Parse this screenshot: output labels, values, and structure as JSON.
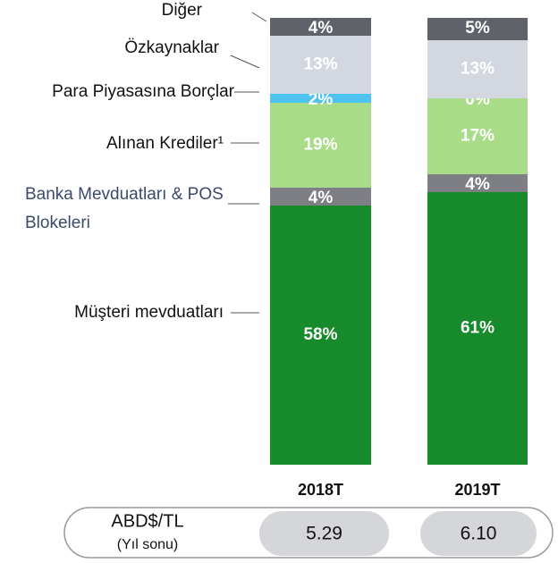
{
  "chart_data": {
    "type": "stacked_bar",
    "categories": [
      "2018T",
      "2019T"
    ],
    "ylim": [
      0,
      100
    ],
    "series": [
      {
        "name": "Müşteri mevduatları",
        "color": "#178a2c",
        "values": [
          58,
          61
        ],
        "value_labels": [
          "58%",
          "61%"
        ]
      },
      {
        "name": "Banka Mevduatları & POS Blokeleri",
        "color": "#7d7f84",
        "values": [
          4,
          4
        ],
        "value_labels": [
          "4%",
          "4%"
        ]
      },
      {
        "name": "Alınan Krediler¹",
        "color": "#a8dc88",
        "values": [
          19,
          17
        ],
        "value_labels": [
          "19%",
          "17%"
        ]
      },
      {
        "name": "Para Piyasasına Borçlar",
        "color": "#4fc3f0",
        "values": [
          2,
          0
        ],
        "value_labels": [
          "2%",
          "0%"
        ]
      },
      {
        "name": "Özkaynaklar",
        "color": "#d3d8e0",
        "values": [
          13,
          13
        ],
        "value_labels": [
          "13%",
          "13%"
        ]
      },
      {
        "name": "Diğer",
        "color": "#5f6369",
        "values": [
          4,
          5
        ],
        "value_labels": [
          "4%",
          "5%"
        ]
      }
    ],
    "fx_row": {
      "label": "ABD$/TL",
      "sublabel": "(Yıl sonu)",
      "values": [
        5.29,
        6.1
      ],
      "value_labels": [
        "5.29",
        "6.10"
      ]
    }
  }
}
